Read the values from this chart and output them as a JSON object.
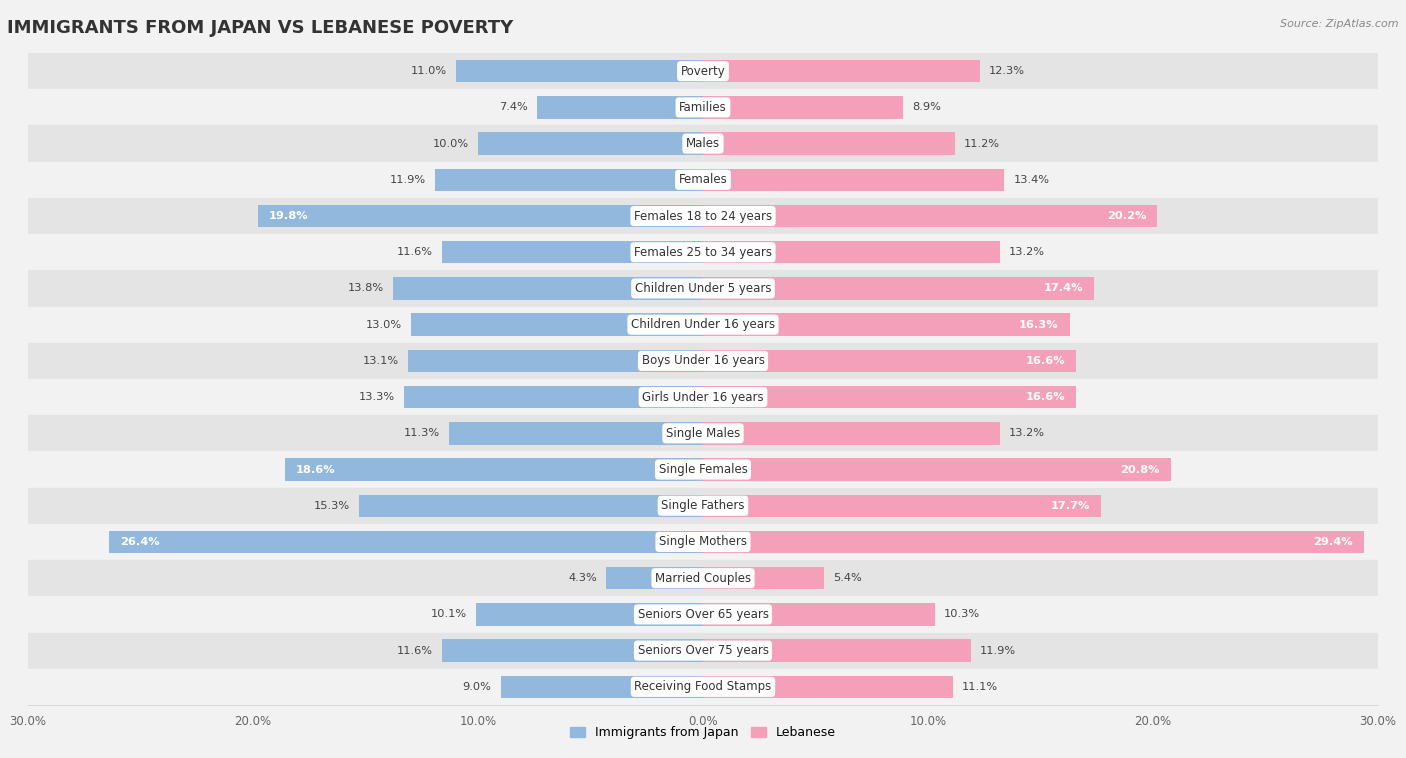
{
  "title": "IMMIGRANTS FROM JAPAN VS LEBANESE POVERTY",
  "source": "Source: ZipAtlas.com",
  "categories": [
    "Poverty",
    "Families",
    "Males",
    "Females",
    "Females 18 to 24 years",
    "Females 25 to 34 years",
    "Children Under 5 years",
    "Children Under 16 years",
    "Boys Under 16 years",
    "Girls Under 16 years",
    "Single Males",
    "Single Females",
    "Single Fathers",
    "Single Mothers",
    "Married Couples",
    "Seniors Over 65 years",
    "Seniors Over 75 years",
    "Receiving Food Stamps"
  ],
  "japan_values": [
    11.0,
    7.4,
    10.0,
    11.9,
    19.8,
    11.6,
    13.8,
    13.0,
    13.1,
    13.3,
    11.3,
    18.6,
    15.3,
    26.4,
    4.3,
    10.1,
    11.6,
    9.0
  ],
  "lebanese_values": [
    12.3,
    8.9,
    11.2,
    13.4,
    20.2,
    13.2,
    17.4,
    16.3,
    16.6,
    16.6,
    13.2,
    20.8,
    17.7,
    29.4,
    5.4,
    10.3,
    11.9,
    11.1
  ],
  "japan_color": "#92b8de",
  "lebanese_color": "#f4a0ba",
  "background_color": "#f2f2f2",
  "row_color_light": "#f2f2f2",
  "row_color_dark": "#e4e4e4",
  "axis_limit": 30.0,
  "legend_label_japan": "Immigrants from Japan",
  "legend_label_lebanese": "Lebanese",
  "title_fontsize": 13,
  "label_fontsize": 8.5,
  "value_fontsize": 8.2,
  "inside_threshold": 16.0
}
